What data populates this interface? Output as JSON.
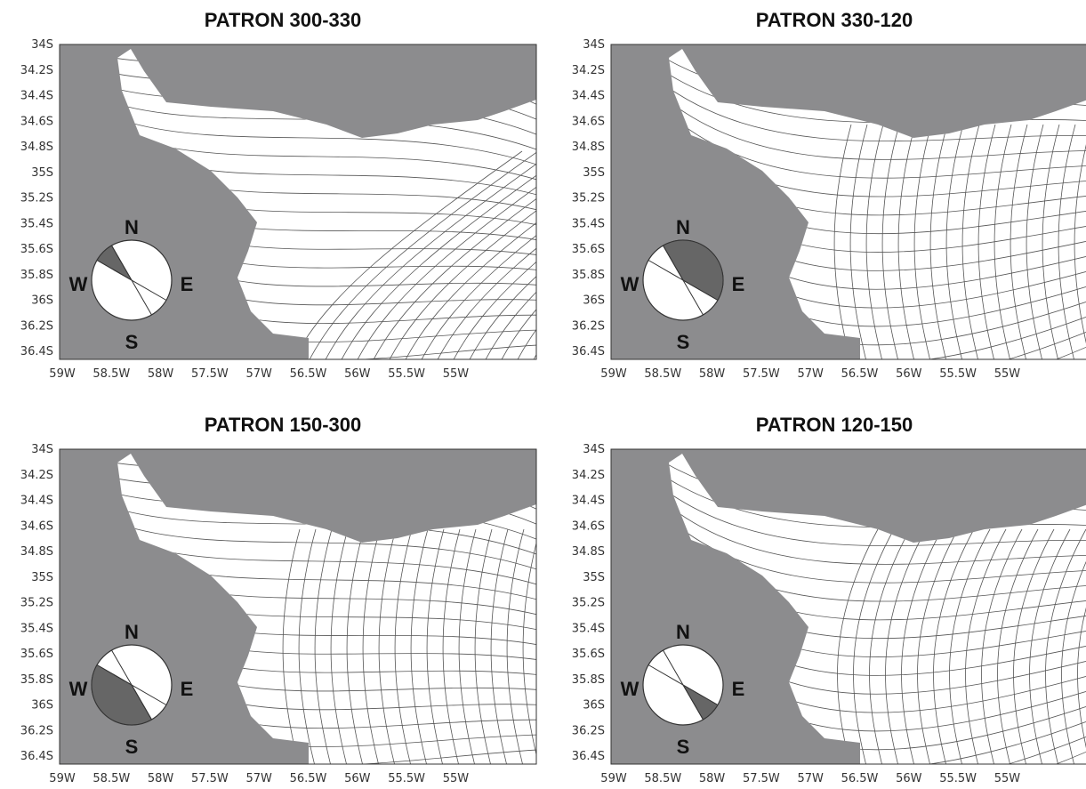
{
  "panels": [
    {
      "title": "PATRON 300-330"
    },
    {
      "title": "PATRON 330-120"
    },
    {
      "title": "PATRON 150-300"
    },
    {
      "title": "PATRON 120-150"
    }
  ],
  "y_labels": [
    "34S",
    "34.2S",
    "34.4S",
    "34.6S",
    "34.8S",
    "35S",
    "35.2S",
    "35.4S",
    "35.6S",
    "35.8S",
    "36S",
    "36.2S",
    "36.4S"
  ],
  "x_labels": [
    "59W",
    "58.5W",
    "58W",
    "57.5W",
    "57W",
    "56.5W",
    "56W",
    "55.5W",
    "55W"
  ],
  "compass": {
    "n": "N",
    "e": "E",
    "s": "S",
    "w": "W"
  }
}
